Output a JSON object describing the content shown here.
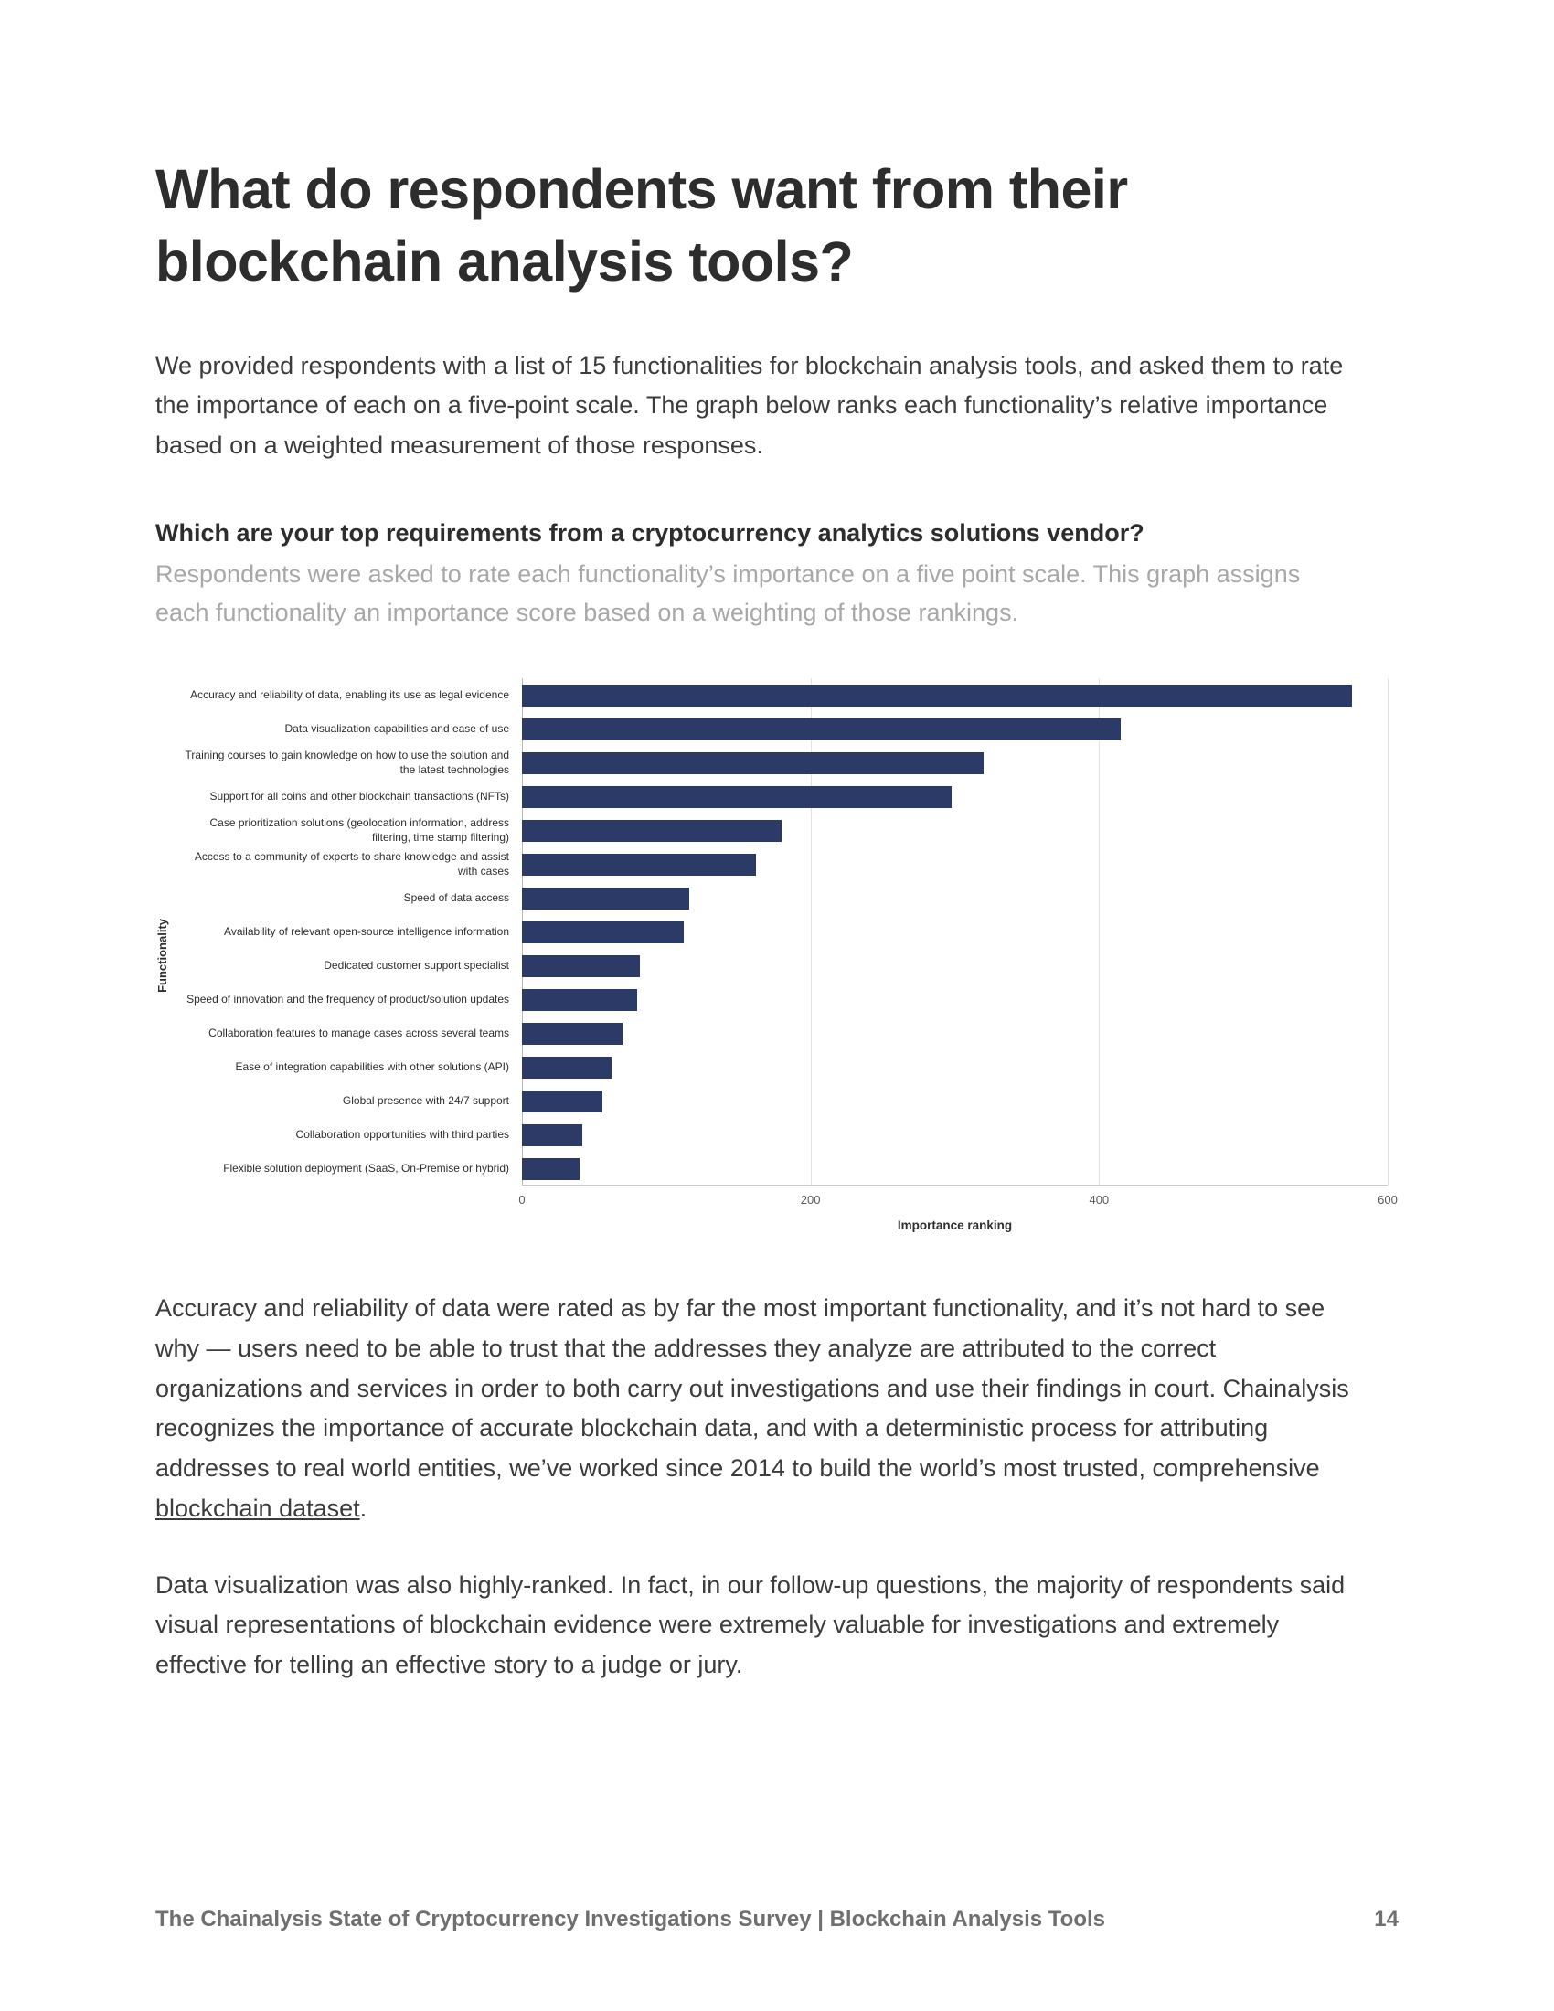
{
  "page": {
    "title": "What do respondents want from their blockchain analysis tools?",
    "intro": "We provided respondents with a list of 15 functionalities for blockchain analysis tools, and asked them to rate the importance of each on a five-point scale. The graph below ranks each functionality’s relative importance based on a weighted measurement of those responses."
  },
  "chart_section": {
    "question": "Which are your top requirements from a cryptocurrency analytics solutions vendor?",
    "subtitle": "Respondents were asked to rate each functionality’s importance on a five point scale. This graph assigns each functionality an importance score based on a weighting of those rankings."
  },
  "chart_data": {
    "type": "bar",
    "orientation": "horizontal",
    "title": "Which are your top requirements from a cryptocurrency analytics solutions vendor?",
    "xlabel": "Importance ranking",
    "ylabel": "Functionality",
    "xlim": [
      0,
      600
    ],
    "x_ticks": [
      "0",
      "200",
      "400",
      "600"
    ],
    "grid": true,
    "legend": "none",
    "bar_color": "#2c3a67",
    "categories": [
      "Accuracy and reliability of data, enabling its use as legal evidence",
      "Data visualization capabilities and ease of use",
      "Training courses to gain knowledge on how to use the solution and the latest technologies",
      "Support for all coins and other blockchain transactions (NFTs)",
      "Case prioritization solutions (geolocation information, address filtering, time stamp filtering)",
      "Access to a community of experts to share knowledge and assist with cases",
      "Speed of data access",
      "Availability of relevant open-source intelligence information",
      "Dedicated customer support specialist",
      "Speed of innovation and the frequency of product/solution updates",
      "Collaboration features to manage cases across several teams",
      "Ease of integration capabilities with other solutions (API)",
      "Global presence with 24/7 support",
      "Collaboration opportunities with third parties",
      "Flexible solution deployment (SaaS, On-Premise or hybrid)"
    ],
    "values": [
      575,
      415,
      320,
      298,
      180,
      162,
      116,
      112,
      82,
      80,
      70,
      62,
      56,
      42,
      40
    ]
  },
  "body": {
    "paragraph1_before": "Accuracy and reliability of data were rated as by far the most important functionality, and it’s not hard to see why — users need to be able to trust that the addresses they analyze are attributed to the correct organizations and services in order to both carry out investigations and use their findings in court. Chainalysis recognizes the importance of accurate blockchain data, and with a deterministic process for attributing addresses to real world entities, we’ve worked since 2014 to build the world’s most trusted, comprehensive ",
    "paragraph1_link": "blockchain dataset",
    "paragraph1_after": ".",
    "paragraph2": "Data visualization was also highly-ranked. In fact, in our follow-up questions, the majority of respondents said visual representations of blockchain evidence were extremely valuable for investigations and extremely effective for telling an effective story to a judge or jury."
  },
  "footer": {
    "text": "The Chainalysis State of Cryptocurrency Investigations Survey | Blockchain Analysis Tools",
    "page_number": "14"
  }
}
